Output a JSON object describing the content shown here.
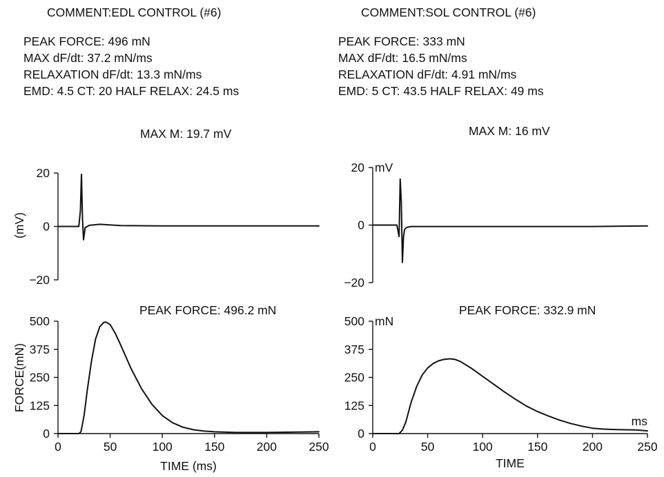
{
  "panels": [
    {
      "comment": "COMMENT:EDL CONTROL (#6)",
      "info_lines": [
        "PEAK FORCE: 496 mN",
        "MAX dF/dt: 37.2 mN/ms",
        "RELAXATION dF/dt: 13.3 mN/ms",
        "EMD: 4.5  CT: 20  HALF RELAX: 24.5 ms"
      ],
      "max_m": "MAX M: 19.7 mV",
      "peak_force_label": "PEAK FORCE: 496.2  mN"
    },
    {
      "comment": "COMMENT:SOL CONTROL (#6)",
      "info_lines": [
        "PEAK FORCE: 333 mN",
        "MAX dF/dt: 16.5 mN/ms",
        "RELAXATION dF/dt: 4.91 mN/ms",
        "EMD: 5  CT: 43.5  HALF RELAX: 49 ms"
      ],
      "max_m": "MAX M: 16 mV",
      "peak_force_label": "PEAK FORCE: 332.9  mN"
    }
  ],
  "chart_data": [
    {
      "id": "edl-emg",
      "type": "line",
      "xlim": [
        0,
        250
      ],
      "ylim": [
        -20,
        20
      ],
      "yticks": [
        "20",
        "0",
        "−20"
      ],
      "ylabel": "(mV)",
      "unit_label": "",
      "series": [
        {
          "x": [
            0,
            20,
            21.5,
            22.5,
            23.5,
            24.5,
            26,
            30,
            40,
            60,
            100,
            250
          ],
          "y": [
            0,
            0,
            6,
            19.5,
            3,
            -5,
            -0.5,
            0.4,
            0.8,
            0.3,
            0.2,
            0.2
          ]
        }
      ]
    },
    {
      "id": "edl-force",
      "type": "line",
      "xlim": [
        0,
        250
      ],
      "ylim": [
        0,
        500
      ],
      "xticks": [
        "0",
        "50",
        "100",
        "150",
        "200",
        "250"
      ],
      "yticks": [
        "500",
        "375",
        "250",
        "125",
        "0"
      ],
      "xlabel": "TIME (ms)",
      "ylabel": "FORCE(mN)",
      "unit_label": "",
      "series": [
        {
          "x": [
            0,
            20,
            22,
            25,
            28,
            32,
            36,
            40,
            44,
            46,
            50,
            55,
            60,
            70,
            80,
            90,
            100,
            110,
            120,
            130,
            140,
            150,
            170,
            200,
            250
          ],
          "y": [
            0,
            0,
            8,
            80,
            190,
            320,
            420,
            475,
            495,
            496,
            485,
            445,
            395,
            290,
            200,
            130,
            80,
            48,
            28,
            17,
            11,
            8,
            5,
            5,
            8
          ]
        }
      ]
    },
    {
      "id": "sol-emg",
      "type": "line",
      "xlim": [
        0,
        250
      ],
      "ylim": [
        -20,
        20
      ],
      "yticks": [
        "20",
        "0",
        "−20"
      ],
      "ylabel": "",
      "unit_label": "mV",
      "series": [
        {
          "x": [
            0,
            22,
            24,
            25,
            26,
            27,
            28,
            29,
            31,
            35,
            50,
            100,
            150,
            200,
            250
          ],
          "y": [
            0,
            0,
            -4,
            16,
            8,
            -13,
            -4,
            -1.5,
            -0.8,
            -0.5,
            -0.5,
            -0.5,
            -0.5,
            -0.5,
            -0.3
          ]
        }
      ]
    },
    {
      "id": "sol-force",
      "type": "line",
      "xlim": [
        0,
        250
      ],
      "ylim": [
        0,
        500
      ],
      "xticks": [
        "0",
        "50",
        "100",
        "150",
        "200",
        "250"
      ],
      "yticks": [
        "500",
        "375",
        "250",
        "125",
        "0"
      ],
      "xlabel": "TIME",
      "ylabel": "",
      "unit_label": "mN",
      "corner_label": "ms",
      "series": [
        {
          "x": [
            0,
            24,
            27,
            30,
            35,
            40,
            45,
            50,
            55,
            60,
            65,
            70,
            75,
            80,
            90,
            100,
            110,
            120,
            130,
            140,
            150,
            160,
            170,
            180,
            190,
            200,
            210,
            220,
            230,
            240,
            250
          ],
          "y": [
            0,
            0,
            15,
            50,
            140,
            210,
            260,
            292,
            312,
            324,
            330,
            332.9,
            330,
            320,
            290,
            255,
            220,
            185,
            152,
            122,
            98,
            78,
            60,
            45,
            33,
            24,
            20,
            18,
            17,
            16,
            12
          ]
        }
      ]
    }
  ]
}
